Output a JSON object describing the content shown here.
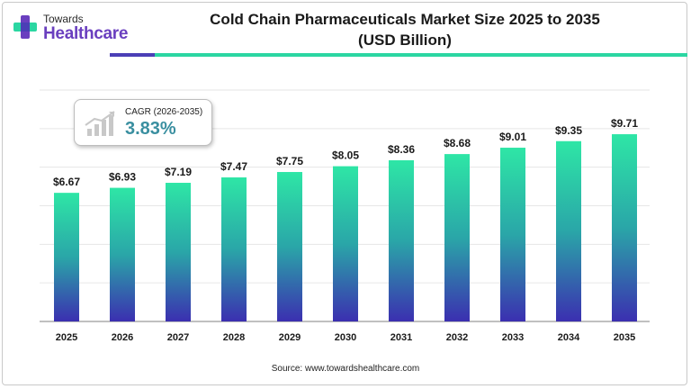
{
  "brand": {
    "top": "Towards",
    "bottom": "Healthcare"
  },
  "title_line1": "Cold Chain Pharmaceuticals Market Size 2025 to 2035",
  "title_line2": "(USD Billion)",
  "cagr": {
    "label": "CAGR (2026-2035)",
    "value": "3.83%"
  },
  "source": "Source: www.towardshealthcare.com",
  "colors": {
    "bar_top": "#2ee6a6",
    "bar_bottom": "#3b2fb0",
    "grid": "#e6e6e6",
    "brand_purple": "#6a3fbf",
    "accent_teal": "#2bd6a2"
  },
  "chart_data": {
    "type": "bar",
    "categories": [
      "2025",
      "2026",
      "2027",
      "2028",
      "2029",
      "2030",
      "2031",
      "2032",
      "2033",
      "2034",
      "2035"
    ],
    "values": [
      6.67,
      6.93,
      7.19,
      7.47,
      7.75,
      8.05,
      8.36,
      8.68,
      9.01,
      9.35,
      9.71
    ],
    "value_labels": [
      "$6.67",
      "$6.93",
      "$7.19",
      "$7.47",
      "$7.75",
      "$8.05",
      "$8.36",
      "$8.68",
      "$9.01",
      "$9.35",
      "$9.71"
    ],
    "title": "Cold Chain Pharmaceuticals Market Size 2025 to 2035 (USD Billion)",
    "xlabel": "",
    "ylabel": "",
    "ylim": [
      0,
      12
    ],
    "grid": true,
    "legend": "none"
  }
}
